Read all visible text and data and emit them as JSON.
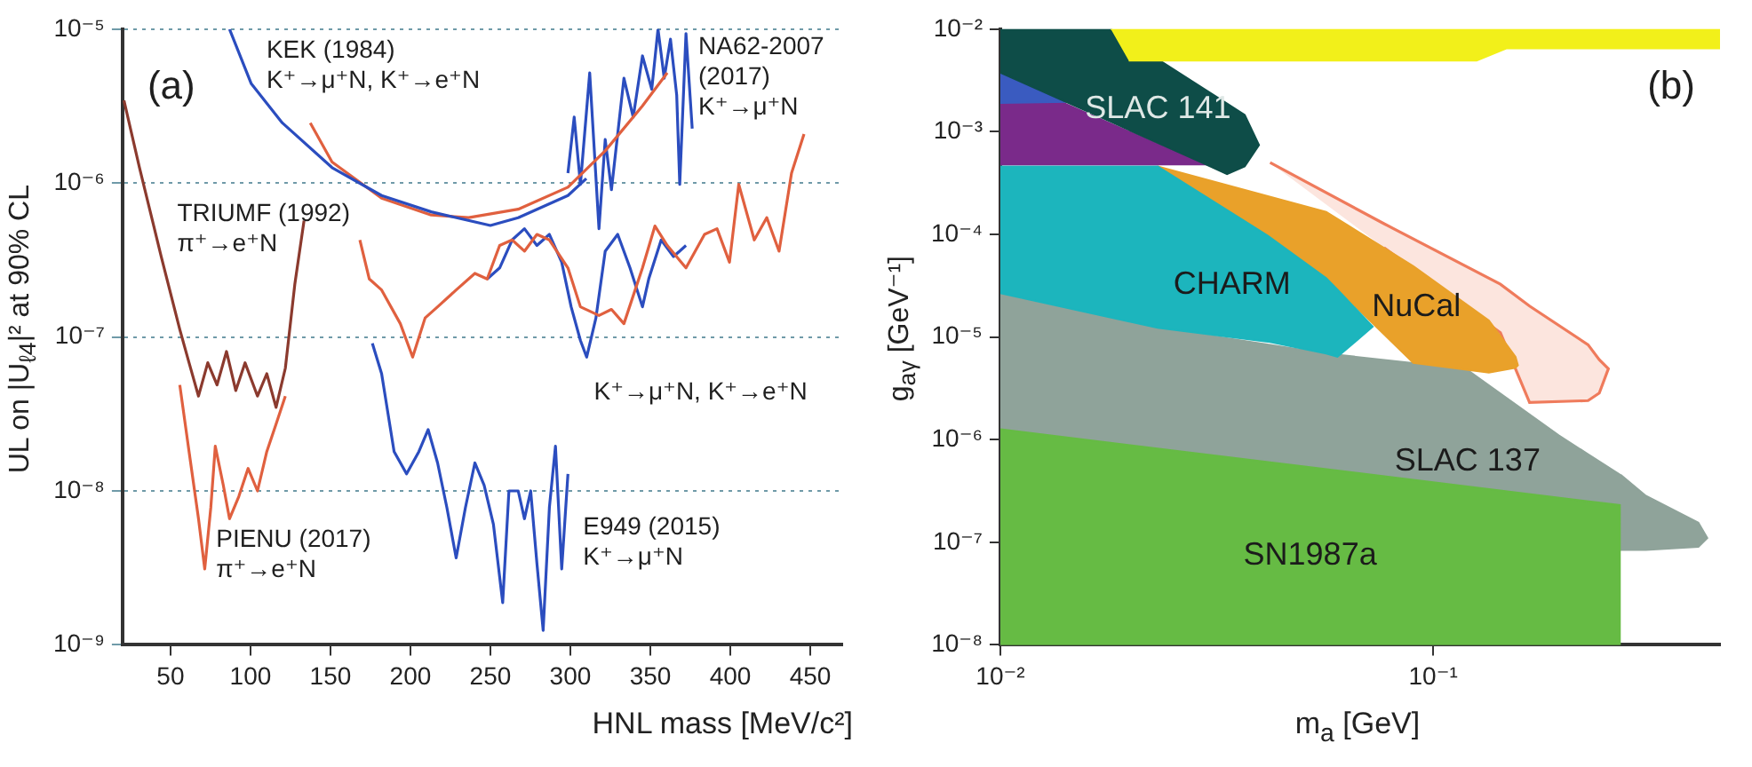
{
  "chart_data": [
    {
      "type": "line",
      "title": "(a)",
      "xlabel": "HNL mass [MeV/c²]",
      "ylabel": "UL on |U$_{ℓ4}$|² at 90% CL",
      "xlim": [
        20,
        470
      ],
      "xticks": [
        50,
        100,
        150,
        200,
        250,
        300,
        350,
        400,
        450
      ],
      "ylim": [
        1e-09,
        1e-05
      ],
      "yticks": [
        {
          "value": 1e-09,
          "label": "10⁻⁹"
        },
        {
          "value": 1e-08,
          "label": "10⁻⁸"
        },
        {
          "value": 1e-07,
          "label": "10⁻⁷"
        },
        {
          "value": 1e-06,
          "label": "10⁻⁶"
        },
        {
          "value": 1e-05,
          "label": "10⁻⁵"
        }
      ],
      "log": "y",
      "grid": "y",
      "series": [
        {
          "color": "#2b4dbf",
          "x": [
            86.9,
            100.5,
            119.9,
            151,
            182,
            213,
            250,
            267.4,
            298.5,
            310
          ],
          "values": [
            1e-05,
            4.42e-06,
            2.46e-06,
            1.26e-06,
            8.3e-07,
            6.5e-07,
            5.3e-07,
            5.96e-07,
            8.3e-07,
            1.07e-06
          ]
        },
        {
          "color": "#e0603f",
          "x": [
            137.4,
            151,
            182,
            213,
            236.4,
            267.4,
            298.5,
            321.8,
            345,
            360.6
          ],
          "values": [
            2.46e-06,
            1.37e-06,
            7.97e-07,
            6.2e-07,
            5.96e-07,
            6.76e-07,
            9.4e-07,
            1.62e-06,
            3.16e-06,
            5.2e-06
          ]
        },
        {
          "color": "#8b3a2e",
          "x": [
            20.9,
            30.6,
            44.2,
            55.8,
            61.6,
            67.5,
            73.3,
            79.1,
            85,
            90.8,
            96.6,
            104.4,
            110.2,
            116,
            121.8,
            127.7,
            133.5
          ],
          "values": [
            3.44e-06,
            1.26e-06,
            3.33e-07,
            1.12e-07,
            6.8e-08,
            4.13e-08,
            6.8e-08,
            4.88e-08,
            8.05e-08,
            4.49e-08,
            6.8e-08,
            4.13e-08,
            5.77e-08,
            3.49e-08,
            6.27e-08,
            2.19e-07,
            5.71e-07
          ]
        },
        {
          "color": "#e0603f",
          "x": [
            55.8,
            61.6,
            67.5,
            71.4,
            75.2,
            78,
            83,
            86.9,
            92.7,
            98.5,
            104.4,
            110.2,
            116,
            121.8
          ],
          "values": [
            4.88e-08,
            1.8e-08,
            6.6e-09,
            3.11e-09,
            7.8e-09,
            1.95e-08,
            1.09e-08,
            6.6e-09,
            9.2e-09,
            1.4e-08,
            1e-08,
            1.8e-08,
            2.72e-08,
            4.13e-08
          ]
        },
        {
          "color": "#e0603f",
          "x": [
            168.4,
            174.3,
            182,
            193.7,
            201.4,
            209.2,
            217,
            228.6,
            240.3,
            248,
            255.8,
            263.6,
            271.3,
            279.1,
            286.9,
            298.5,
            306.3,
            317.9,
            325.7,
            333.5,
            345.1,
            352.9,
            360.6,
            372.3,
            383.9,
            391.7,
            399.5,
            405.3,
            415,
            422.8,
            430.5,
            438.3,
            446.1
          ],
          "values": [
            4.27e-07,
            2.38e-07,
            2.02e-07,
            1.22e-07,
            7.4e-08,
            1.33e-07,
            1.57e-07,
            2.02e-07,
            2.59e-07,
            2.38e-07,
            3.93e-07,
            4.27e-07,
            3.61e-07,
            4.64e-07,
            4.27e-07,
            2.81e-07,
            1.57e-07,
            1.38e-07,
            1.51e-07,
            1.22e-07,
            2.81e-07,
            5.26e-07,
            3.93e-07,
            2.81e-07,
            4.64e-07,
            5.05e-07,
            3.06e-07,
            9.8e-07,
            4.27e-07,
            5.96e-07,
            3.61e-07,
            1.16e-06,
            2.08e-06
          ]
        },
        {
          "color": "#2b4dbf",
          "x": [
            248,
            255.8,
            263.6,
            271.3,
            279.1,
            286.9,
            294.6,
            300.5,
            306.3,
            310.2,
            316,
            321.8,
            329.6,
            337.3,
            345.1,
            349,
            356.8,
            364.5,
            372.3
          ],
          "values": [
            2.38e-07,
            2.81e-07,
            4.27e-07,
            5.05e-07,
            3.93e-07,
            4.64e-07,
            3.06e-07,
            1.57e-07,
            9.5e-08,
            7.4e-08,
            1.33e-07,
            3.61e-07,
            4.64e-07,
            2.81e-07,
            1.57e-07,
            2.38e-07,
            4.27e-07,
            3.33e-07,
            3.93e-07
          ]
        },
        {
          "color": "#2b4dbf",
          "x": [
            298.5,
            302.4,
            306.3,
            312.1,
            317.9,
            321.8,
            325.7,
            333.5,
            339.3,
            345.1,
            350.9,
            354.8,
            358.7,
            362.6,
            366.5,
            368.4,
            372.3,
            376.2
          ],
          "values": [
            1.16e-06,
            2.68e-06,
            9.8e-07,
            5.2e-06,
            5.05e-07,
            1.92e-06,
            9.05e-07,
            4.8e-06,
            2.68e-06,
            6.7e-06,
            4.06e-06,
            1e-05,
            4.8e-06,
            8.6e-06,
            3.73e-06,
            9.8e-07,
            9.35e-06,
            2.26e-06
          ]
        },
        {
          "color": "#2b4dbf",
          "x": [
            176.2,
            182,
            189.8,
            197.6,
            205.3,
            211.1,
            217,
            222.8,
            228.6,
            234.4,
            240.3,
            246.1,
            251.9,
            257.7,
            261.6,
            267.4,
            271.3,
            275.2,
            279.1,
            283,
            286.9,
            290.7,
            294.6,
            298.5
          ],
          "values": [
            9.1e-08,
            5.77e-08,
            1.8e-08,
            1.29e-08,
            1.8e-08,
            2.5e-08,
            1.52e-08,
            7.8e-09,
            3.67e-09,
            7.8e-09,
            1.52e-08,
            1.09e-08,
            6.07e-09,
            1.88e-09,
            1e-08,
            1e-08,
            6.6e-09,
            1e-08,
            3.38e-09,
            1.24e-09,
            7.8e-09,
            1.95e-08,
            3.11e-09,
            1.29e-08
          ]
        }
      ],
      "annotations": [
        "KEK (1984)\nK⁺→μ⁺N, K⁺→e⁺N",
        "NA62-2007\n(2017)\nK⁺→μ⁺N",
        "TRIUMF (1992)\nπ⁺→e⁺N",
        "K⁺→μ⁺N, K⁺→e⁺N",
        "PIENU (2017)\nπ⁺→e⁺N",
        "E949 (2015)\nK⁺→μ⁺N"
      ]
    },
    {
      "type": "area",
      "title": "(b)",
      "xlabel": "m$_{a}$ [GeV]",
      "ylabel": "g$_{aγ}$ [GeV⁻¹]",
      "xlim": [
        0.01,
        0.46
      ],
      "xticks": [
        {
          "value": 0.01,
          "label": "10⁻²"
        },
        {
          "value": 0.1,
          "label": "10⁻¹"
        }
      ],
      "ylim": [
        1e-08,
        0.01
      ],
      "yticks": [
        {
          "value": 1e-08,
          "label": "10⁻⁸"
        },
        {
          "value": 1e-07,
          "label": "10⁻⁷"
        },
        {
          "value": 1e-06,
          "label": "10⁻⁶"
        },
        {
          "value": 1e-05,
          "label": "10⁻⁵"
        },
        {
          "value": 0.0001,
          "label": "10⁻⁴"
        },
        {
          "value": 0.001,
          "label": "10⁻³"
        },
        {
          "value": 0.01,
          "label": "10⁻²"
        }
      ],
      "log": "xy",
      "series": [
        {
          "color": "#ef7b5c",
          "line_style": "solid",
          "x": [
            0.042,
            0.077,
            0.143,
            0.167,
            0.228,
            0.242,
            0.254,
            0.242,
            0.228,
            0.167,
            0.143,
            0.077
          ],
          "values": [
            0.0005,
            0.000127,
            3.27e-05,
            2e-05,
            8.4e-06,
            6e-06,
            4.9e-06,
            2.84e-06,
            2.4e-06,
            2.3e-06,
            1.1e-05,
            7.4e-05
          ]
        },
        {
          "name": "SLAC 137",
          "color": "#8fa39a",
          "x": [
            0.01,
            0.0224,
            0.0566,
            0.119,
            0.195,
            0.27,
            0.272,
            0.31,
            0.41,
            0.43,
            0.41,
            0.31,
            0.272,
            0.27,
            0.195,
            0.119,
            0.0566,
            0.0224,
            0.01
          ],
          "values": [
            2.67e-05,
            1.26e-05,
            6.9e-06,
            4.9e-06,
            1.1e-06,
            4.56e-07,
            4.5e-07,
            2.84e-07,
            1.55e-07,
            1.1e-07,
            9e-08,
            8.4e-08,
            8.4e-08,
            2.3e-07,
            2.74e-07,
            3.54e-07,
            5.2e-07,
            8.3e-07,
            1.26e-06
          ]
        },
        {
          "name": "NuCal",
          "color": "#e9a12a",
          "x": [
            0.0231,
            0.0566,
            0.09,
            0.1345,
            0.155,
            0.157,
            0.155,
            0.1345,
            0.09,
            0.0566
          ],
          "values": [
            0.00046,
            0.000166,
            4.9e-05,
            1.45e-05,
            6.4e-06,
            5.3e-06,
            5e-06,
            4.5e-06,
            5.6e-06,
            3.75e-05
          ]
        },
        {
          "name": "CHARM",
          "color": "#1cb5bd",
          "x": [
            0.01,
            0.0231,
            0.0415,
            0.0566,
            0.0601,
            0.0725,
            0.0601,
            0.0566,
            0.0415,
            0.0231,
            0.01
          ],
          "values": [
            0.00046,
            0.00046,
            9.7e-05,
            3.75e-05,
            2.9e-05,
            1.26e-05,
            6.4e-06,
            6.9e-06,
            9e-06,
            1.23e-05,
            2.67e-05
          ]
        },
        {
          "color": "#7a2a8a",
          "x": [
            0.01,
            0.014,
            0.0295,
            0.014,
            0.01
          ],
          "values": [
            0.00191,
            0.00191,
            0.00048,
            0.00048,
            0.00048
          ]
        },
        {
          "color": "#3a5bc0",
          "x": [
            0.01,
            0.014,
            0.01
          ],
          "values": [
            0.00377,
            0.00195,
            0.00191
          ]
        },
        {
          "name": "SLAC 141",
          "color": "#0e4d48",
          "x": [
            0.01,
            0.018,
            0.0295,
            0.0334,
            0.0367,
            0.0396,
            0.0367,
            0.0334,
            0.0295,
            0.018,
            0.014,
            0.01
          ],
          "values": [
            0.01,
            0.01,
            0.00263,
            0.00188,
            0.00146,
            0.00074,
            0.00046,
            0.000387,
            0.00049,
            0.00125,
            0.002,
            0.00377
          ]
        },
        {
          "name": "SN1987a",
          "color": "#66bb44",
          "x": [
            0.01,
            0.27,
            0.27,
            0.01
          ],
          "values": [
            1.26e-06,
            2.3e-07,
            1e-08,
            1e-08
          ]
        },
        {
          "color": "#f2f01a",
          "x": [
            0.018,
            0.46,
            0.46,
            0.148,
            0.126,
            0.0198
          ],
          "values": [
            0.01,
            0.01,
            0.0065,
            0.0065,
            0.00494,
            0.00494
          ]
        }
      ]
    }
  ]
}
